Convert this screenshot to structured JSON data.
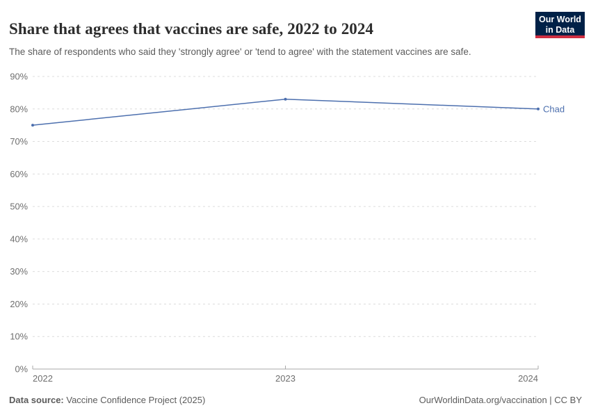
{
  "header": {
    "logo": {
      "line1": "Our World",
      "line2": "in Data"
    }
  },
  "chart_data": {
    "type": "line",
    "title": "Share that agrees that vaccines are safe, 2022 to 2024",
    "subtitle": "The share of respondents who said they 'strongly agree' or 'tend to agree' with the statement vaccines are safe.",
    "x": [
      "2022",
      "2023",
      "2024"
    ],
    "series": [
      {
        "name": "Chad",
        "values": [
          75,
          83,
          80
        ]
      }
    ],
    "ylim": [
      0,
      90
    ],
    "ytick_step": 10,
    "ytick_suffix": "%",
    "grid": "horizontal-dashed",
    "legend_position": "line-end-label"
  },
  "footer": {
    "source_label": "Data source:",
    "source_value": " Vaccine Confidence Project (2025)",
    "license_text": "OurWorldinData.org/vaccination | CC BY"
  },
  "colors": {
    "line": "#4c6fae",
    "grid": "#dcdcdc",
    "axis": "#a8a8a8",
    "tick_text": "#6e6e6e",
    "title_text": "#2d2d2d",
    "subtitle_text": "#5b5b5b",
    "footer_text": "#5b5b5b",
    "logo_bg": "#002147",
    "logo_accent": "#cf2e41"
  }
}
